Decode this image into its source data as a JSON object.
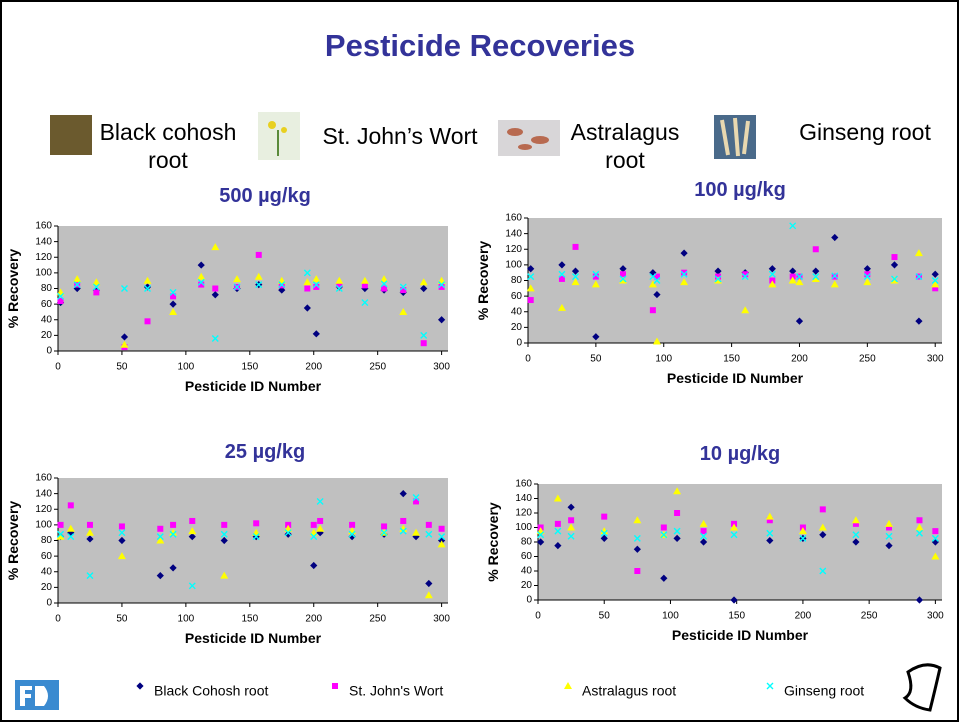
{
  "title": "Pesticide Recoveries",
  "samples": [
    "Black cohosh root",
    "St. John’s Wort",
    "Astralagus root",
    "Ginseng root"
  ],
  "legend": [
    {
      "name": "Black Cohosh root",
      "color": "#000080",
      "marker": "diamond"
    },
    {
      "name": "St. John's Wort",
      "color": "#ff00ff",
      "marker": "square"
    },
    {
      "name": "Astralagus root",
      "color": "#ffff00",
      "marker": "triangle"
    },
    {
      "name": "Ginseng root",
      "color": "#00ffff",
      "marker": "x"
    }
  ],
  "chart_data": [
    {
      "type": "scatter",
      "title": "500 µg/kg",
      "x_label": "Pesticide ID Number",
      "y_label": "% Recovery",
      "xlim": [
        0,
        305
      ],
      "ylim": [
        0,
        160
      ],
      "xticks": [
        0,
        50,
        100,
        150,
        200,
        250,
        300
      ],
      "yticks": [
        0,
        20,
        40,
        60,
        80,
        100,
        120,
        140,
        160
      ],
      "x": [
        2,
        15,
        30,
        52,
        70,
        90,
        112,
        123,
        140,
        157,
        175,
        195,
        202,
        220,
        240,
        255,
        270,
        286,
        300
      ],
      "series": [
        {
          "values": [
            62,
            80,
            78,
            18,
            82,
            60,
            110,
            72,
            80,
            85,
            78,
            55,
            22,
            82,
            80,
            78,
            75,
            80,
            40
          ]
        },
        {
          "values": [
            64,
            85,
            75,
            5,
            38,
            70,
            85,
            80,
            82,
            123,
            84,
            80,
            82,
            85,
            84,
            80,
            78,
            10,
            82
          ]
        },
        {
          "values": [
            75,
            92,
            88,
            8,
            90,
            50,
            95,
            133,
            92,
            95,
            90,
            88,
            92,
            90,
            90,
            92,
            50,
            88,
            90
          ]
        },
        {
          "values": [
            70,
            85,
            82,
            80,
            80,
            75,
            88,
            16,
            82,
            85,
            85,
            100,
            85,
            80,
            62,
            86,
            82,
            20,
            85
          ]
        }
      ]
    },
    {
      "type": "scatter",
      "title": "100 µg/kg",
      "x_label": "Pesticide ID Number",
      "y_label": "% Recovery",
      "xlim": [
        0,
        305
      ],
      "ylim": [
        0,
        160
      ],
      "xticks": [
        0,
        50,
        100,
        150,
        200,
        250,
        300
      ],
      "yticks": [
        0,
        20,
        40,
        60,
        80,
        100,
        120,
        140,
        160
      ],
      "x": [
        2,
        25,
        35,
        50,
        70,
        92,
        95,
        115,
        140,
        160,
        180,
        195,
        200,
        212,
        226,
        250,
        270,
        288,
        300
      ],
      "series": [
        {
          "values": [
            95,
            100,
            92,
            8,
            95,
            90,
            62,
            115,
            92,
            90,
            95,
            92,
            28,
            92,
            135,
            95,
            100,
            28,
            88
          ]
        },
        {
          "values": [
            55,
            82,
            123,
            85,
            88,
            42,
            85,
            90,
            85,
            88,
            80,
            85,
            85,
            120,
            85,
            88,
            110,
            85,
            70
          ]
        },
        {
          "values": [
            70,
            45,
            78,
            75,
            80,
            75,
            2,
            78,
            80,
            42,
            75,
            80,
            78,
            82,
            75,
            78,
            80,
            115,
            75
          ]
        },
        {
          "values": [
            85,
            88,
            85,
            88,
            82,
            85,
            80,
            88,
            82,
            85,
            88,
            150,
            85,
            85,
            86,
            85,
            82,
            85,
            80
          ]
        }
      ]
    },
    {
      "type": "scatter",
      "title": "25 µg/kg",
      "x_label": "Pesticide ID Number",
      "y_label": "% Recovery",
      "xlim": [
        0,
        305
      ],
      "ylim": [
        0,
        160
      ],
      "xticks": [
        0,
        50,
        100,
        150,
        200,
        250,
        300
      ],
      "yticks": [
        0,
        20,
        40,
        60,
        80,
        100,
        120,
        140,
        160
      ],
      "x": [
        2,
        10,
        25,
        50,
        80,
        90,
        105,
        130,
        155,
        180,
        200,
        205,
        230,
        255,
        270,
        280,
        290,
        300
      ],
      "series": [
        {
          "values": [
            85,
            90,
            82,
            80,
            35,
            45,
            85,
            80,
            85,
            88,
            48,
            90,
            85,
            88,
            140,
            85,
            25,
            80
          ]
        },
        {
          "values": [
            100,
            125,
            100,
            98,
            95,
            100,
            105,
            100,
            102,
            100,
            100,
            105,
            100,
            98,
            105,
            130,
            100,
            95
          ]
        },
        {
          "values": [
            85,
            95,
            90,
            60,
            80,
            90,
            92,
            35,
            90,
            95,
            90,
            95,
            92,
            90,
            95,
            90,
            10,
            75
          ]
        },
        {
          "values": [
            88,
            85,
            35,
            90,
            85,
            88,
            22,
            88,
            85,
            90,
            85,
            130,
            88,
            90,
            92,
            135,
            88,
            85
          ]
        }
      ]
    },
    {
      "type": "scatter",
      "title": "10 µg/kg",
      "x_label": "Pesticide ID Number",
      "y_label": "% Recovery",
      "xlim": [
        0,
        305
      ],
      "ylim": [
        0,
        160
      ],
      "xticks": [
        0,
        50,
        100,
        150,
        200,
        250,
        300
      ],
      "yticks": [
        0,
        20,
        40,
        60,
        80,
        100,
        120,
        140,
        160
      ],
      "x": [
        2,
        15,
        25,
        50,
        75,
        95,
        105,
        125,
        148,
        175,
        200,
        215,
        240,
        265,
        288,
        300
      ],
      "series": [
        {
          "values": [
            80,
            75,
            128,
            85,
            70,
            30,
            85,
            80,
            0,
            82,
            85,
            90,
            80,
            75,
            0,
            80
          ]
        },
        {
          "values": [
            100,
            105,
            110,
            115,
            40,
            100,
            120,
            95,
            105,
            110,
            100,
            125,
            105,
            100,
            110,
            95
          ]
        },
        {
          "values": [
            95,
            140,
            100,
            95,
            110,
            90,
            150,
            105,
            100,
            115,
            95,
            100,
            110,
            105,
            100,
            60
          ]
        },
        {
          "values": [
            90,
            95,
            88,
            92,
            85,
            90,
            95,
            88,
            90,
            92,
            85,
            40,
            90,
            88,
            92,
            85
          ]
        }
      ]
    }
  ]
}
